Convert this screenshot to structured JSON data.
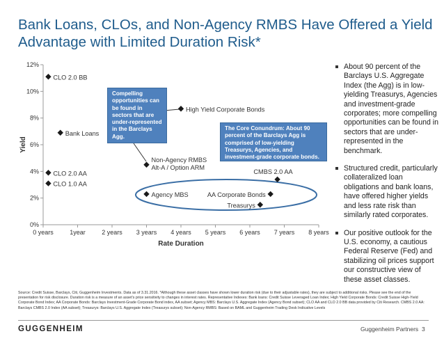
{
  "title": "Bank Loans, CLOs, and Non-Agency RMBS Have Offered a Yield Advantage with Limited Duration Risk*",
  "chart_data": {
    "type": "scatter",
    "xlabel": "Rate Duration",
    "ylabel": "Yield",
    "xlim": [
      0,
      8
    ],
    "ylim": [
      0,
      12
    ],
    "x_ticks": [
      {
        "value": 0,
        "label": "0 years"
      },
      {
        "value": 1,
        "label": "1year"
      },
      {
        "value": 2,
        "label": "2 years"
      },
      {
        "value": 3,
        "label": "3 years"
      },
      {
        "value": 4,
        "label": "4 years"
      },
      {
        "value": 5,
        "label": "5 years"
      },
      {
        "value": 6,
        "label": "6 years"
      },
      {
        "value": 7,
        "label": "7 years"
      },
      {
        "value": 8,
        "label": "8 years"
      }
    ],
    "y_ticks": [
      {
        "value": 0,
        "label": "0%"
      },
      {
        "value": 2,
        "label": "2%"
      },
      {
        "value": 4,
        "label": "4%"
      },
      {
        "value": 6,
        "label": "6%"
      },
      {
        "value": 8,
        "label": "8%"
      },
      {
        "value": 10,
        "label": "10%"
      },
      {
        "value": 12,
        "label": "12%"
      }
    ],
    "marker_color": "#1a1a1a",
    "points": [
      {
        "label": "CLO 2.0 BB",
        "x": 0.15,
        "y": 11.1
      },
      {
        "label": "Bank Loans",
        "x": 0.5,
        "y": 6.9
      },
      {
        "label": "CLO 2.0 AA",
        "x": 0.15,
        "y": 3.9
      },
      {
        "label": "CLO 1.0 AA",
        "x": 0.15,
        "y": 3.1
      },
      {
        "label": "High Yield Corporate Bonds",
        "x": 4.0,
        "y": 8.7
      },
      {
        "label": "Non-Agency RMBS Alt-A / Option ARM",
        "x": 3.0,
        "y": 4.5
      },
      {
        "label": "Agency MBS",
        "x": 3.0,
        "y": 2.3
      },
      {
        "label": "AA Corporate Bonds",
        "x": 6.6,
        "y": 2.3
      },
      {
        "label": "Treasurys",
        "x": 6.3,
        "y": 1.5
      },
      {
        "label": "CMBS 2.0 AA",
        "x": 6.8,
        "y": 3.4
      }
    ],
    "callouts": [
      "Compelling opportunities can be found in sectors that are under-represented in the Barclays Agg.",
      "The Core Conundrum: About 90 percent of the Barclays Agg is comprised of low-yielding Treasurys, Agencies, and investment-grade corporate bonds."
    ],
    "colors": {
      "callout_fill": "#4f81bd",
      "ellipse": "#3a6ea5",
      "axis": "#999999"
    }
  },
  "bullets": [
    "About 90 percent of the Barclays U.S. Aggregate Index (the Agg) is in low-yielding Treasurys, Agencies and investment-grade corporates; more compelling opportunities can be found in sectors that are under-represented in the benchmark.",
    "Structured credit, particularly collateralized loan obligations and bank loans, have offered higher yields and less rate risk than similarly rated corporates.",
    "Our positive outlook for the U.S. economy, a cautious Federal Reserve (Fed) and stabilizing oil prices support our constructive view of these asset classes."
  ],
  "source": "Source: Credit Suisse, Barclays, Citi, Guggenheim Investments. Data as of 3.31.2016. *Although these asset classes have shown lower duration risk (due to their adjustable rates), they are subject to additional risks. Please see the end of the presentation for risk disclosure. Duration risk is a measure of an asset's price sensitivity to changes in interest rates. Representative Indexes: Bank loans: Credit Suisse Leveraged Loan Index; High Yield Corporate Bonds: Credit Suisse High-Yield Corporate Bond Index; AA Corporate Bonds: Barclays Investment-Grade Corporate Bond index, AA subset; Agency MBS: Barclays U.S. Aggregate Index (Agency Bond subset); CLO AA and CLO 2.0 BB data provided by Citi Research. CMBS 2.0 AA: Barclays CMBS 2.0 Index (AA subset); Treasurys: Barclays U.S. Aggregate Index (Treasurys subset); Non-Agency RMBS: Based on BAML and Guggenheim Trading Desk Indicative Levels",
  "footer": {
    "logo": "GUGGENHEIM",
    "company": "Guggenheim Partners",
    "page": "3"
  }
}
